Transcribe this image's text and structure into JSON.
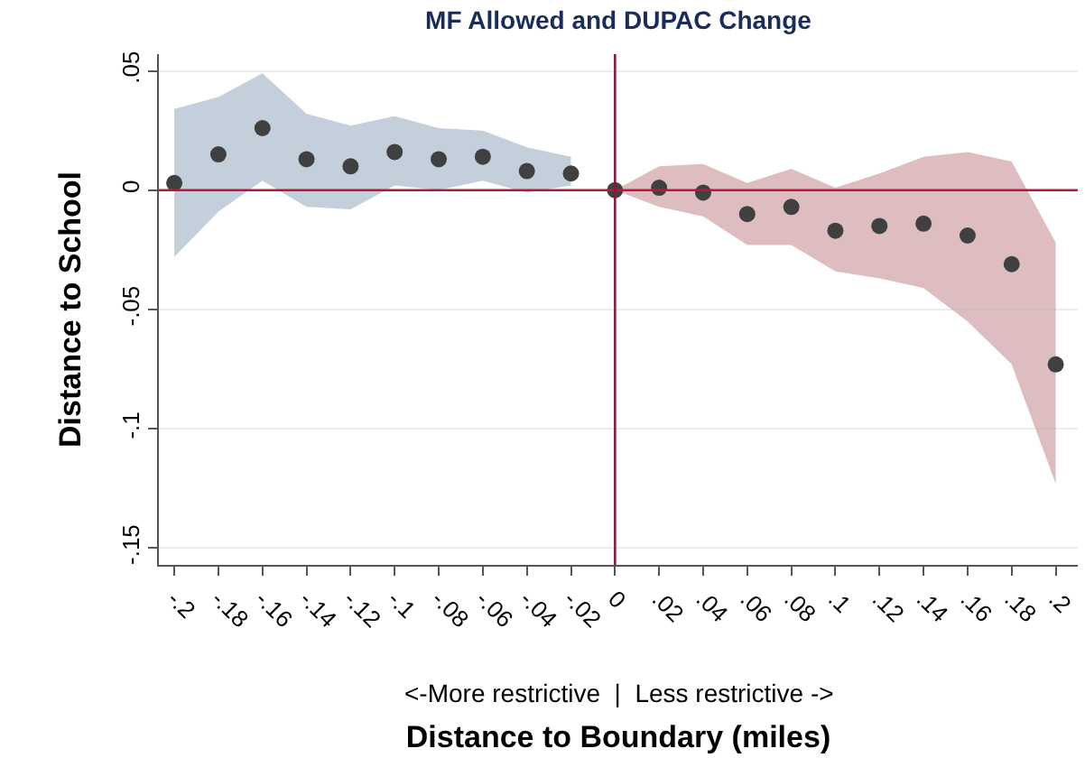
{
  "chart_data": {
    "type": "scatter",
    "title": "MF Allowed and DUPAC Change",
    "xlabel": "Distance to Boundary (miles)",
    "ylabel": "Distance to School",
    "annotations": [
      "<-More restrictive  |  Less restrictive ->"
    ],
    "xlim": [
      -0.207,
      0.21
    ],
    "ylim": [
      -0.157,
      0.057
    ],
    "xticks": [
      {
        "value": -0.2,
        "label": "-.2"
      },
      {
        "value": -0.18,
        "label": "-.18"
      },
      {
        "value": -0.16,
        "label": "-.16"
      },
      {
        "value": -0.14,
        "label": "-.14"
      },
      {
        "value": -0.12,
        "label": "-.12"
      },
      {
        "value": -0.1,
        "label": "-.1"
      },
      {
        "value": -0.08,
        "label": "-.08"
      },
      {
        "value": -0.06,
        "label": "-.06"
      },
      {
        "value": -0.04,
        "label": "-.04"
      },
      {
        "value": -0.02,
        "label": "-.02"
      },
      0,
      {
        "value": 0.02,
        "label": ".02"
      },
      {
        "value": 0.04,
        "label": ".04"
      },
      {
        "value": 0.06,
        "label": ".06"
      },
      {
        "value": 0.08,
        "label": ".08"
      },
      {
        "value": 0.1,
        "label": ".1"
      },
      {
        "value": 0.12,
        "label": ".12"
      },
      {
        "value": 0.14,
        "label": ".14"
      },
      {
        "value": 0.16,
        "label": ".16"
      },
      {
        "value": 0.18,
        "label": ".18"
      },
      {
        "value": 0.2,
        "label": ".2"
      }
    ],
    "yticks": [
      {
        "value": 0.05,
        "label": ".05"
      },
      0,
      {
        "value": -0.05,
        "label": "-.05"
      },
      {
        "value": -0.1,
        "label": "-.1"
      },
      {
        "value": -0.15,
        "label": "-.15"
      }
    ],
    "grid": "y",
    "marker": "circle",
    "ref_lines": [
      {
        "axis": "y",
        "value": 0,
        "color": "#c0143c"
      },
      {
        "axis": "x",
        "value": 0,
        "color": "#8b1a3a"
      }
    ],
    "series": [
      {
        "color": "#9fb2c6",
        "colors": [
          "#404040",
          "#404040",
          "#404040",
          "#404040",
          "#404040",
          "#404040",
          "#404040",
          "#404040",
          "#404040",
          "#404040"
        ],
        "x": [
          -0.2,
          -0.18,
          -0.16,
          -0.14,
          -0.12,
          -0.1,
          -0.08,
          -0.06,
          -0.04,
          -0.02
        ],
        "values": [
          0.003,
          0.015,
          0.026,
          0.013,
          0.01,
          0.016,
          0.013,
          0.014,
          0.008,
          0.007
        ],
        "lower": [
          -0.028,
          -0.009,
          0.004,
          -0.007,
          -0.008,
          0.002,
          0.0,
          0.004,
          -0.001,
          0.002
        ],
        "upper": [
          0.034,
          0.039,
          0.049,
          0.032,
          0.027,
          0.031,
          0.026,
          0.025,
          0.018,
          0.014
        ]
      },
      {
        "color": "#c9959b",
        "colors": [
          "#404040",
          "#404040",
          "#404040",
          "#404040",
          "#404040",
          "#404040",
          "#404040",
          "#404040",
          "#404040",
          "#404040",
          "#404040"
        ],
        "x": [
          0,
          0.02,
          0.04,
          0.06,
          0.08,
          0.1,
          0.12,
          0.14,
          0.16,
          0.18,
          0.2
        ],
        "values": [
          0.0,
          0.001,
          -0.001,
          -0.01,
          -0.007,
          -0.017,
          -0.015,
          -0.014,
          -0.019,
          -0.031,
          -0.073
        ],
        "lower": [
          0.0,
          -0.007,
          -0.011,
          -0.023,
          -0.023,
          -0.034,
          -0.037,
          -0.041,
          -0.055,
          -0.073,
          -0.123
        ],
        "upper": [
          0.0,
          0.01,
          0.011,
          0.003,
          0.009,
          0.001,
          0.007,
          0.014,
          0.016,
          0.012,
          -0.022
        ]
      }
    ]
  }
}
